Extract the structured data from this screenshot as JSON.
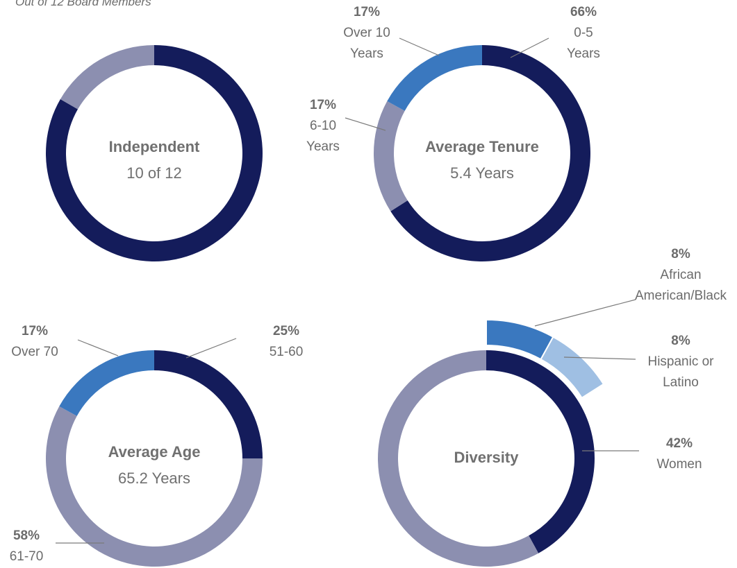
{
  "chart_data": [
    {
      "type": "donut",
      "subtitle": "Out of 12 Board Members",
      "title": "Independent",
      "center_label": "10 of 12",
      "values": [
        10,
        2
      ],
      "colors": [
        "#141c5b",
        "#8c8fb0"
      ]
    },
    {
      "type": "donut",
      "title": "Average Tenure",
      "center_label": "5.4 Years",
      "categories": [
        "0-5 Years",
        "6-10 Years",
        "Over 10 Years"
      ],
      "values": [
        66,
        17,
        17
      ],
      "value_labels": [
        "66%",
        "17%",
        "17%"
      ],
      "colors": [
        "#141c5b",
        "#8c8fb0",
        "#3a78bf"
      ]
    },
    {
      "type": "donut",
      "title": "Average Age",
      "center_label": "65.2 Years",
      "categories": [
        "51-60",
        "61-70",
        "Over 70"
      ],
      "values": [
        25,
        58,
        17
      ],
      "value_labels": [
        "25%",
        "58%",
        "17%"
      ],
      "colors": [
        "#141c5b",
        "#8c8fb0",
        "#3a78bf"
      ]
    },
    {
      "type": "donut",
      "title": "Diversity",
      "categories": [
        "Women",
        null
      ],
      "values": [
        42,
        58
      ],
      "value_labels": [
        "42%",
        null
      ],
      "colors": [
        "#141c5b",
        "#8c8fb0"
      ],
      "outer": {
        "categories": [
          "African American/Black",
          "Hispanic or Latino"
        ],
        "values": [
          8,
          8
        ],
        "value_labels": [
          "8%",
          "8%"
        ],
        "colors": [
          "#3a78bf",
          "#9fbfe3"
        ]
      }
    }
  ]
}
